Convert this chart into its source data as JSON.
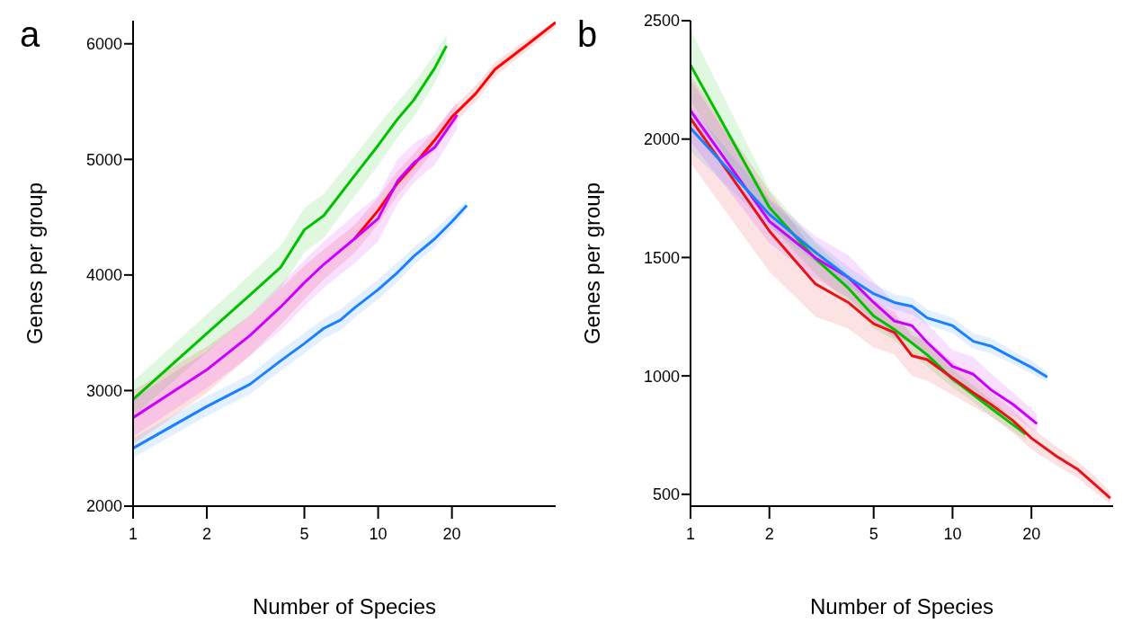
{
  "chart_data": [
    {
      "type": "line",
      "title": "a",
      "xlabel": "Number of Species",
      "ylabel": "Genes per group",
      "log": "x",
      "xlim": [
        1,
        53
      ],
      "xticks": [
        1,
        2,
        5,
        10,
        20
      ],
      "ylim": [
        2000,
        6200
      ],
      "yticks": [
        2000,
        3000,
        4000,
        5000,
        6000
      ],
      "line_style": "solid",
      "series": [
        {
          "color": "#00c000",
          "x": [
            1,
            2,
            3,
            4,
            5,
            6,
            8,
            10,
            12,
            14,
            17,
            19
          ],
          "values": [
            2923,
            3495,
            3826,
            4066,
            4391,
            4514,
            4857,
            5121,
            5349,
            5516,
            5789,
            5982
          ],
          "lower": [
            2780,
            3330,
            3650,
            3880,
            4200,
            4320,
            4680,
            4950,
            5190,
            5370,
            5660,
            5880
          ],
          "upper": [
            3080,
            3660,
            4000,
            4250,
            4580,
            4700,
            5030,
            5290,
            5500,
            5660,
            5910,
            6080
          ]
        },
        {
          "color": "#ff0000",
          "x": [
            1,
            2,
            3,
            4,
            5,
            6,
            8,
            10,
            12,
            14,
            17,
            20,
            25,
            30,
            40,
            53
          ],
          "values": [
            null,
            null,
            null,
            null,
            null,
            null,
            4312,
            4558,
            4796,
            4954,
            5165,
            5367,
            5569,
            5780,
            5982,
            6185
          ],
          "lower": [
            2530,
            2980,
            3300,
            3570,
            3790,
            3960,
            4190,
            4440,
            4690,
            4860,
            5080,
            5290,
            5500,
            5720,
            5930,
            6140
          ],
          "upper": [
            3000,
            3380,
            3650,
            3880,
            4080,
            4220,
            4430,
            4670,
            4900,
            5050,
            5250,
            5440,
            5640,
            5840,
            6030,
            6200
          ]
        },
        {
          "color": "#cc00ff",
          "x": [
            1,
            2,
            3,
            4,
            5,
            6,
            8,
            10,
            12,
            14,
            17,
            21
          ],
          "values": [
            2765,
            3180,
            3477,
            3723,
            3934,
            4092,
            4312,
            4488,
            4813,
            4971,
            5103,
            5385
          ],
          "lower": [
            2600,
            3020,
            3300,
            3520,
            3730,
            3890,
            4100,
            4290,
            4620,
            4800,
            4950,
            5260
          ],
          "upper": [
            2930,
            3340,
            3650,
            3920,
            4130,
            4290,
            4520,
            4690,
            5000,
            5140,
            5250,
            5500
          ]
        },
        {
          "color": "#1a80ff",
          "x": [
            1,
            2,
            3,
            4,
            5,
            6,
            7,
            8,
            10,
            12,
            14,
            17,
            20,
            23
          ],
          "values": [
            2501,
            2862,
            3055,
            3257,
            3407,
            3538,
            3609,
            3714,
            3873,
            4022,
            4163,
            4312,
            4462,
            4602
          ],
          "lower": [
            2420,
            2780,
            2970,
            3170,
            3320,
            3450,
            3520,
            3630,
            3790,
            3940,
            4090,
            4240,
            4400,
            4560
          ],
          "upper": [
            2590,
            2950,
            3140,
            3350,
            3500,
            3620,
            3700,
            3800,
            3960,
            4110,
            4240,
            4390,
            4530,
            4640
          ]
        }
      ]
    },
    {
      "type": "line",
      "title": "b",
      "xlabel": "Number of Species",
      "ylabel": "Genes per group",
      "log": "x",
      "xlim": [
        1,
        41
      ],
      "xticks": [
        1,
        2,
        5,
        10,
        20
      ],
      "ylim": [
        450,
        2500
      ],
      "yticks": [
        500,
        1000,
        1500,
        2000,
        2500
      ],
      "line_style": "solid",
      "series": [
        {
          "color": "#00c000",
          "x": [
            1,
            2,
            3,
            4,
            5,
            6,
            8,
            10,
            12,
            14,
            17,
            19
          ],
          "values": [
            2312,
            1711,
            1494,
            1371,
            1253,
            1196,
            1089,
            987,
            921,
            864,
            794,
            754
          ],
          "lower": [
            2160,
            1640,
            1430,
            1310,
            1200,
            1150,
            1040,
            950,
            890,
            830,
            765,
            730
          ],
          "upper": [
            2460,
            1790,
            1560,
            1430,
            1310,
            1250,
            1140,
            1030,
            960,
            900,
            825,
            780
          ]
        },
        {
          "color": "#e8121a",
          "x": [
            1,
            2,
            3,
            4,
            5,
            6,
            7,
            8,
            10,
            12,
            14,
            17,
            20,
            25,
            30,
            35,
            40
          ],
          "values": [
            2087,
            1612,
            1388,
            1310,
            1220,
            1183,
            1085,
            1069,
            991,
            929,
            880,
            811,
            737,
            660,
            606,
            541,
            484
          ],
          "lower": [
            1900,
            1440,
            1250,
            1200,
            1120,
            1090,
            1000,
            980,
            920,
            870,
            830,
            760,
            690,
            620,
            570,
            510,
            460
          ],
          "upper": [
            2270,
            1780,
            1520,
            1420,
            1320,
            1270,
            1170,
            1150,
            1060,
            990,
            930,
            860,
            780,
            700,
            640,
            575,
            510
          ]
        },
        {
          "color": "#cc00ff",
          "x": [
            1,
            2,
            3,
            4,
            5,
            6,
            7,
            8,
            10,
            12,
            14,
            17,
            21
          ],
          "values": [
            2120,
            1653,
            1498,
            1416,
            1310,
            1232,
            1212,
            1142,
            1040,
            1007,
            942,
            880,
            798
          ],
          "lower": [
            1990,
            1560,
            1410,
            1330,
            1230,
            1160,
            1140,
            1070,
            970,
            940,
            880,
            830,
            760
          ],
          "upper": [
            2250,
            1750,
            1590,
            1510,
            1400,
            1310,
            1290,
            1220,
            1110,
            1080,
            1010,
            930,
            840
          ]
        },
        {
          "color": "#1a80ff",
          "x": [
            1,
            2,
            3,
            4,
            5,
            6,
            7,
            8,
            10,
            12,
            14,
            17,
            20,
            23
          ],
          "values": [
            2046,
            1682,
            1522,
            1416,
            1347,
            1310,
            1294,
            1245,
            1212,
            1146,
            1126,
            1077,
            1036,
            995
          ],
          "lower": [
            1950,
            1630,
            1480,
            1380,
            1310,
            1280,
            1260,
            1215,
            1180,
            1115,
            1095,
            1050,
            1010,
            975
          ],
          "upper": [
            2140,
            1740,
            1570,
            1460,
            1390,
            1345,
            1330,
            1280,
            1245,
            1180,
            1160,
            1105,
            1065,
            1015
          ]
        }
      ]
    }
  ]
}
